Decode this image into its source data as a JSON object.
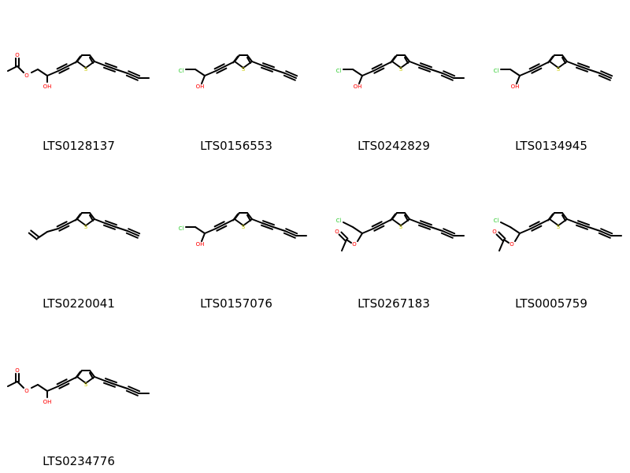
{
  "colors": {
    "bond": "#000000",
    "oxygen": "#ff0000",
    "sulfur": "#cccc00",
    "chlorine": "#33cc33"
  },
  "atoms": {
    "oxygen": "O",
    "hydroxyl": "OH",
    "sulfur": "S",
    "chlorine": "Cl"
  },
  "molecules": [
    {
      "id": "LTS0128137",
      "variant": "acetoxy-oh-diyne"
    },
    {
      "id": "LTS0156553",
      "variant": "cl-oh-terminal"
    },
    {
      "id": "LTS0242829",
      "variant": "cl-oh-diyne"
    },
    {
      "id": "LTS0134945",
      "variant": "cl-oh-terminal"
    },
    {
      "id": "LTS0220041",
      "variant": "vinyl"
    },
    {
      "id": "LTS0157076",
      "variant": "cl-oh-diyne"
    },
    {
      "id": "LTS0267183",
      "variant": "cl-oac-diyne"
    },
    {
      "id": "LTS0005759",
      "variant": "cl-oac-diyne"
    },
    {
      "id": "LTS0234776",
      "variant": "acetoxy-oh-diyne"
    }
  ]
}
